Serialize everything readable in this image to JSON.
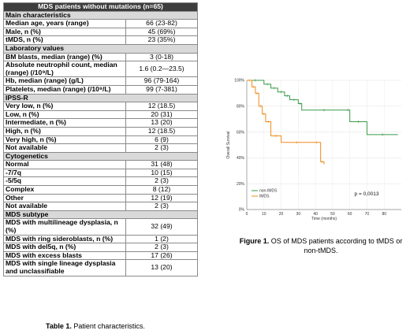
{
  "table": {
    "title": "MDS patients without mutations (n=65)",
    "caption_label": "Table 1.",
    "caption_text": " Patient characteristics.",
    "rows": [
      {
        "kind": "section",
        "label": "Main characteristics"
      },
      {
        "kind": "row",
        "label": "Median age, years (range)",
        "value": "66 (23-82)"
      },
      {
        "kind": "row",
        "label": "Male, n (%)",
        "value": "45 (69%)"
      },
      {
        "kind": "row",
        "label": "tMDS, n (%)",
        "value": "23 (35%)"
      },
      {
        "kind": "section",
        "label": "Laboratory values"
      },
      {
        "kind": "row",
        "label": "BM blasts, median (range) (%)",
        "value": "3 (0-18)"
      },
      {
        "kind": "row",
        "label": "Absolute neutrophil count, median (range) (/10⁹/L)",
        "value": "1.6 (0.2—23.5)"
      },
      {
        "kind": "row",
        "label": "Hb, median (range) (g/L)",
        "value": "96 (79-164)"
      },
      {
        "kind": "row",
        "label": "Platelets, median (range) (/10⁹/L)",
        "value": "99 (7-381)"
      },
      {
        "kind": "section",
        "label": "IPSS-R"
      },
      {
        "kind": "row",
        "label": "Very low, n (%)",
        "value": "12 (18.5)"
      },
      {
        "kind": "row",
        "label": "Low, n (%)",
        "value": "20 (31)"
      },
      {
        "kind": "row",
        "label": "Intermediate, n (%)",
        "value": "13 (20)"
      },
      {
        "kind": "row",
        "label": "High, n (%)",
        "value": "12 (18.5)"
      },
      {
        "kind": "row",
        "label": "Very high, n (%)",
        "value": "6 (9)"
      },
      {
        "kind": "row",
        "label": "Not available",
        "value": "2 (3)"
      },
      {
        "kind": "section",
        "label": "Cytogenetics"
      },
      {
        "kind": "row",
        "label": "Normal",
        "value": "31 (48)"
      },
      {
        "kind": "row",
        "label": "-7/7q",
        "value": "10 (15)"
      },
      {
        "kind": "row",
        "label": "-5/5q",
        "value": "2 (3)"
      },
      {
        "kind": "row",
        "label": "Complex",
        "value": "8 (12)"
      },
      {
        "kind": "row",
        "label": "Other",
        "value": "12 (19)"
      },
      {
        "kind": "row",
        "label": "Not available",
        "value": "2 (3)"
      },
      {
        "kind": "section",
        "label": "MDS subtype"
      },
      {
        "kind": "row",
        "label": "MDS with multilineage dysplasia, n (%)",
        "value": "32 (49)"
      },
      {
        "kind": "row",
        "label": "MDS with ring sideroblasts, n (%)",
        "value": "1 (2)"
      },
      {
        "kind": "row",
        "label": "MDS with del5q, n (%)",
        "value": "2 (3)"
      },
      {
        "kind": "row",
        "label": "MDS with excess blasts",
        "value": "17 (26)"
      },
      {
        "kind": "row",
        "label": "MDS with single lineage dysplasia and unclassifiable",
        "value": "13 (20)"
      }
    ]
  },
  "figure": {
    "caption_label": "Figure 1.",
    "caption_text": " OS of MDS patients according to tMDS or non-tMDS."
  },
  "chart_data": {
    "type": "line",
    "title": "",
    "xlabel": "Time (months)",
    "ylabel": "Overall Survival",
    "xlim": [
      0,
      90
    ],
    "ylim": [
      0,
      100
    ],
    "xticks": [
      0,
      10,
      20,
      30,
      40,
      50,
      60,
      70,
      80
    ],
    "yticks": [
      0,
      20,
      40,
      60,
      80,
      100
    ],
    "ytick_labels": [
      "0%",
      "20%",
      "40%",
      "60%",
      "80%",
      "100%"
    ],
    "legend_position": "bottom-left",
    "annotation": "p = 0,0013",
    "colors": {
      "non-tMDS": "#3a9a4a",
      "tMDS": "#f08c1e"
    },
    "series": [
      {
        "name": "non-tMDS",
        "x": [
          0,
          10,
          14,
          18,
          22,
          25,
          30,
          32,
          58,
          60,
          70,
          88
        ],
        "y": [
          100,
          97,
          94,
          91,
          88,
          85,
          82,
          77,
          77,
          68,
          58,
          58
        ]
      },
      {
        "name": "tMDS",
        "x": [
          0,
          3,
          5,
          7,
          9,
          11,
          14,
          20,
          38,
          43,
          45
        ],
        "y": [
          100,
          95,
          90,
          80,
          74,
          68,
          57,
          52,
          52,
          37,
          35
        ]
      }
    ]
  }
}
